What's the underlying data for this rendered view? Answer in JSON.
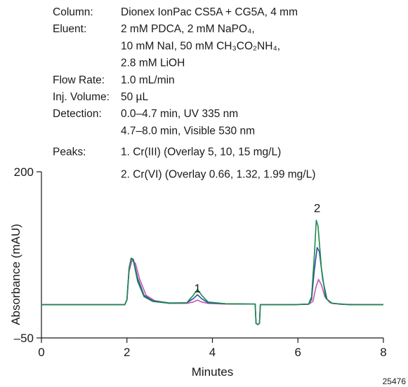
{
  "conditions": {
    "rows": [
      {
        "label": "Column:",
        "lines": [
          "Dionex IonPac CS5A + CG5A, 4 mm"
        ]
      },
      {
        "label": "Eluent:",
        "lines": [
          "2 mM PDCA, 2 mM NaPO₄,",
          "10 mM NaI, 50 mM CH₃CO₂NH₄,",
          "2.8 mM LiOH"
        ]
      },
      {
        "label": "Flow Rate:",
        "lines": [
          "1.0 mL/min"
        ]
      },
      {
        "label": "Inj. Volume:",
        "lines": [
          "50 µL"
        ]
      },
      {
        "label": "Detection:",
        "lines": [
          "0.0–4.7 min, UV 335 nm",
          "4.7–8.0 min, Visible 530 nm"
        ]
      },
      {
        "label": "Peaks:",
        "lines": [
          "1. Cr(III) (Overlay 5, 10, 15 mg/L)",
          "2. Cr(VI) (Overlay 0.66, 1.32, 1.99 mg/L)"
        ]
      }
    ]
  },
  "figure_number": "25476",
  "chart_data": {
    "type": "line",
    "xlabel": "Minutes",
    "ylabel": "Absorbance (mAU)",
    "xlim": [
      0,
      8
    ],
    "ylim": [
      -50,
      200
    ],
    "xticks": [
      0,
      2,
      4,
      6,
      8
    ],
    "yticks": [
      -50,
      200
    ],
    "grid": false,
    "peak_labels": [
      {
        "text": "1",
        "x": 3.65,
        "y": 12
      },
      {
        "text": "2",
        "x": 6.45,
        "y": 133
      }
    ],
    "series": [
      {
        "color": "#1f8a4c",
        "baseline": 0,
        "points": [
          [
            0,
            0
          ],
          [
            1.95,
            0
          ],
          [
            2.0,
            8
          ],
          [
            2.05,
            55
          ],
          [
            2.1,
            70
          ],
          [
            2.15,
            66
          ],
          [
            2.25,
            35
          ],
          [
            2.4,
            12
          ],
          [
            2.6,
            5
          ],
          [
            3.0,
            2
          ],
          [
            3.4,
            3
          ],
          [
            3.55,
            14
          ],
          [
            3.65,
            23
          ],
          [
            3.75,
            14
          ],
          [
            3.9,
            4
          ],
          [
            4.3,
            1.5
          ],
          [
            4.9,
            1
          ],
          [
            5.0,
            1
          ],
          [
            5.02,
            -28
          ],
          [
            5.06,
            -30
          ],
          [
            5.1,
            -28
          ],
          [
            5.12,
            0
          ],
          [
            5.9,
            0
          ],
          [
            6.25,
            1
          ],
          [
            6.32,
            12
          ],
          [
            6.38,
            70
          ],
          [
            6.43,
            127
          ],
          [
            6.47,
            118
          ],
          [
            6.55,
            55
          ],
          [
            6.65,
            10
          ],
          [
            6.8,
            2
          ],
          [
            7.2,
            0
          ],
          [
            8.0,
            0
          ]
        ]
      },
      {
        "color": "#2b4f9e",
        "baseline": 0,
        "points": [
          [
            0,
            0
          ],
          [
            1.95,
            0
          ],
          [
            2.0,
            8
          ],
          [
            2.05,
            55
          ],
          [
            2.1,
            70
          ],
          [
            2.15,
            68
          ],
          [
            2.25,
            40
          ],
          [
            2.4,
            14
          ],
          [
            2.6,
            6
          ],
          [
            3.0,
            2.5
          ],
          [
            3.4,
            3
          ],
          [
            3.55,
            9
          ],
          [
            3.65,
            15
          ],
          [
            3.75,
            9
          ],
          [
            3.9,
            3
          ],
          [
            4.3,
            1.5
          ],
          [
            4.9,
            1
          ],
          [
            5.0,
            1
          ],
          [
            5.02,
            -28
          ],
          [
            5.06,
            -30
          ],
          [
            5.1,
            -28
          ],
          [
            5.12,
            0
          ],
          [
            5.9,
            0
          ],
          [
            6.25,
            1
          ],
          [
            6.32,
            8
          ],
          [
            6.38,
            50
          ],
          [
            6.45,
            86
          ],
          [
            6.5,
            80
          ],
          [
            6.58,
            38
          ],
          [
            6.68,
            8
          ],
          [
            6.8,
            2
          ],
          [
            7.2,
            0
          ],
          [
            8.0,
            0
          ]
        ]
      },
      {
        "color": "#c154b8",
        "baseline": 0,
        "points": [
          [
            0,
            0
          ],
          [
            1.95,
            0
          ],
          [
            2.0,
            7
          ],
          [
            2.05,
            50
          ],
          [
            2.12,
            67
          ],
          [
            2.2,
            62
          ],
          [
            2.3,
            38
          ],
          [
            2.45,
            14
          ],
          [
            2.65,
            6
          ],
          [
            3.0,
            2
          ],
          [
            3.4,
            2
          ],
          [
            3.55,
            4
          ],
          [
            3.65,
            7
          ],
          [
            3.75,
            4
          ],
          [
            3.9,
            2
          ],
          [
            4.3,
            1
          ],
          [
            4.9,
            1
          ],
          [
            5.0,
            1
          ],
          [
            5.02,
            -28
          ],
          [
            5.06,
            -30
          ],
          [
            5.1,
            -28
          ],
          [
            5.12,
            0
          ],
          [
            5.9,
            0
          ],
          [
            6.25,
            0.5
          ],
          [
            6.35,
            5
          ],
          [
            6.42,
            26
          ],
          [
            6.48,
            38
          ],
          [
            6.55,
            30
          ],
          [
            6.63,
            12
          ],
          [
            6.75,
            3
          ],
          [
            7.0,
            0.5
          ],
          [
            8.0,
            0
          ]
        ]
      }
    ]
  }
}
